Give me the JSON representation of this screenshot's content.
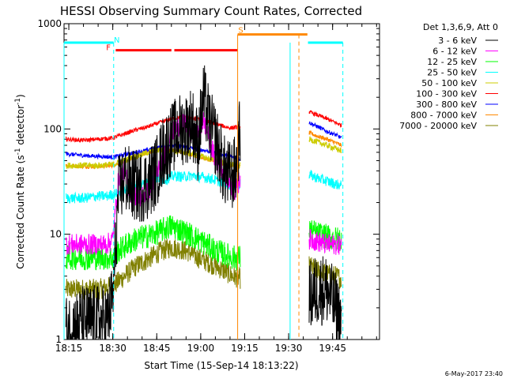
{
  "chart_data": {
    "type": "line",
    "title": "HESSI Observing Summary Count Rates, Corrected",
    "xlabel": "Start Time (15-Sep-14 18:13:22)",
    "ylabel_main": "Corrected Count Rate (s",
    "ylabel_sup1": "-1",
    "ylabel_mid": " detector",
    "ylabel_sup2": "-1",
    "ylabel_end": ")",
    "yscale": "log",
    "ylim": [
      1,
      1000
    ],
    "xlim_minutes": [
      1093.37,
      1201.0
    ],
    "x_ticks": [
      {
        "label": "18:15",
        "minutes": 1095
      },
      {
        "label": "18:30",
        "minutes": 1110
      },
      {
        "label": "18:45",
        "minutes": 1125
      },
      {
        "label": "19:00",
        "minutes": 1140
      },
      {
        "label": "19:15",
        "minutes": 1155
      },
      {
        "label": "19:30",
        "minutes": 1170
      },
      {
        "label": "19:45",
        "minutes": 1185
      }
    ],
    "y_ticks": [
      {
        "label": "1",
        "value": 1
      },
      {
        "label": "10",
        "value": 10
      },
      {
        "label": "100",
        "value": 100
      },
      {
        "label": "1000",
        "value": 1000
      }
    ],
    "legend_title": "Det 1,3,6,9, Att 0",
    "legend_position": "right",
    "timestamp": "6-May-2017 23:40",
    "gap_minutes": [
      1153.5,
      1176.5
    ],
    "series": [
      {
        "name": "3 - 6 keV",
        "color": "#000000",
        "seg1": [
          [
            1094,
            1.2
          ],
          [
            1100,
            1.5
          ],
          [
            1105,
            1.5
          ],
          [
            1108,
            1.5
          ],
          [
            1110,
            2.5
          ],
          [
            1112,
            25
          ],
          [
            1114,
            35
          ],
          [
            1116,
            30
          ],
          [
            1119,
            28
          ],
          [
            1122,
            30
          ],
          [
            1125,
            40
          ],
          [
            1127,
            60
          ],
          [
            1130,
            80
          ],
          [
            1133,
            100
          ],
          [
            1135,
            100
          ],
          [
            1137,
            120
          ],
          [
            1139,
            70
          ],
          [
            1141,
            200
          ],
          [
            1143,
            110
          ],
          [
            1145,
            80
          ],
          [
            1148,
            40
          ],
          [
            1150,
            35
          ],
          [
            1152,
            40
          ],
          [
            1153.5,
            100
          ]
        ],
        "seg2": [
          [
            1177,
            2.5
          ],
          [
            1180,
            3
          ],
          [
            1183,
            3
          ],
          [
            1186,
            2
          ],
          [
            1188,
            1.5
          ]
        ]
      },
      {
        "name": "6 - 12 keV",
        "color": "#ff00ff",
        "seg1": [
          [
            1094,
            8
          ],
          [
            1100,
            8
          ],
          [
            1105,
            8
          ],
          [
            1108,
            8
          ],
          [
            1110,
            9
          ],
          [
            1112,
            35
          ],
          [
            1114,
            40
          ],
          [
            1116,
            25
          ],
          [
            1119,
            22
          ],
          [
            1122,
            25
          ],
          [
            1125,
            38
          ],
          [
            1128,
            60
          ],
          [
            1130,
            90
          ],
          [
            1133,
            110
          ],
          [
            1135,
            110
          ],
          [
            1137,
            90
          ],
          [
            1139,
            90
          ],
          [
            1141,
            120
          ],
          [
            1143,
            80
          ],
          [
            1145,
            50
          ],
          [
            1148,
            40
          ],
          [
            1150,
            30
          ],
          [
            1152,
            25
          ],
          [
            1153.5,
            35
          ]
        ],
        "seg2": [
          [
            1177,
            9
          ],
          [
            1180,
            8.5
          ],
          [
            1183,
            8
          ],
          [
            1186,
            8
          ],
          [
            1188,
            8
          ]
        ]
      },
      {
        "name": "12 - 25 keV",
        "color": "#00ff00",
        "seg1": [
          [
            1094,
            6
          ],
          [
            1100,
            6
          ],
          [
            1105,
            6
          ],
          [
            1108,
            6
          ],
          [
            1110,
            6
          ],
          [
            1112,
            7
          ],
          [
            1115,
            8
          ],
          [
            1118,
            9
          ],
          [
            1121,
            9.5
          ],
          [
            1124,
            10
          ],
          [
            1127,
            11
          ],
          [
            1130,
            12
          ],
          [
            1133,
            11
          ],
          [
            1136,
            10
          ],
          [
            1139,
            9
          ],
          [
            1142,
            8
          ],
          [
            1145,
            7
          ],
          [
            1148,
            6.5
          ],
          [
            1151,
            6
          ],
          [
            1153.5,
            6
          ]
        ],
        "seg2": [
          [
            1177,
            11
          ],
          [
            1180,
            10
          ],
          [
            1183,
            9.5
          ],
          [
            1186,
            9
          ],
          [
            1188,
            9
          ]
        ]
      },
      {
        "name": "25 - 50 keV",
        "color": "#00ffff",
        "seg1": [
          [
            1094,
            22
          ],
          [
            1100,
            22
          ],
          [
            1105,
            23
          ],
          [
            1108,
            23
          ],
          [
            1110,
            24
          ],
          [
            1113,
            25
          ],
          [
            1116,
            28
          ],
          [
            1119,
            30
          ],
          [
            1122,
            31
          ],
          [
            1125,
            34
          ],
          [
            1128,
            33
          ],
          [
            1131,
            36
          ],
          [
            1134,
            35
          ],
          [
            1137,
            36
          ],
          [
            1140,
            35
          ],
          [
            1143,
            34
          ],
          [
            1146,
            32
          ],
          [
            1149,
            30
          ],
          [
            1151,
            29
          ],
          [
            1153.5,
            30
          ]
        ],
        "seg2": [
          [
            1177,
            37
          ],
          [
            1180,
            34
          ],
          [
            1183,
            32
          ],
          [
            1186,
            30
          ],
          [
            1188,
            29
          ]
        ]
      },
      {
        "name": "50 - 100 keV",
        "color": "#cccc00",
        "seg1": [
          [
            1094,
            45
          ],
          [
            1100,
            45
          ],
          [
            1105,
            45
          ],
          [
            1110,
            46
          ],
          [
            1114,
            50
          ],
          [
            1118,
            55
          ],
          [
            1122,
            60
          ],
          [
            1126,
            63
          ],
          [
            1130,
            62
          ],
          [
            1134,
            60
          ],
          [
            1138,
            57
          ],
          [
            1142,
            53
          ],
          [
            1146,
            50
          ],
          [
            1150,
            46
          ],
          [
            1153.5,
            45
          ]
        ],
        "seg2": [
          [
            1177,
            80
          ],
          [
            1180,
            75
          ],
          [
            1183,
            70
          ],
          [
            1186,
            65
          ],
          [
            1188,
            62
          ]
        ]
      },
      {
        "name": "100 - 300 keV",
        "color": "#ff0000",
        "seg1": [
          [
            1094,
            80
          ],
          [
            1100,
            78
          ],
          [
            1105,
            80
          ],
          [
            1110,
            82
          ],
          [
            1114,
            90
          ],
          [
            1118,
            98
          ],
          [
            1122,
            105
          ],
          [
            1126,
            115
          ],
          [
            1130,
            125
          ],
          [
            1134,
            130
          ],
          [
            1138,
            125
          ],
          [
            1142,
            118
          ],
          [
            1146,
            110
          ],
          [
            1150,
            102
          ],
          [
            1153.5,
            105
          ]
        ],
        "seg2": [
          [
            1177,
            145
          ],
          [
            1180,
            135
          ],
          [
            1183,
            125
          ],
          [
            1186,
            115
          ],
          [
            1188,
            108
          ]
        ]
      },
      {
        "name": "300 - 800 keV",
        "color": "#0000ff",
        "seg1": [
          [
            1094,
            58
          ],
          [
            1100,
            56
          ],
          [
            1105,
            55
          ],
          [
            1110,
            54
          ],
          [
            1114,
            57
          ],
          [
            1118,
            60
          ],
          [
            1122,
            63
          ],
          [
            1126,
            67
          ],
          [
            1130,
            70
          ],
          [
            1134,
            68
          ],
          [
            1138,
            65
          ],
          [
            1142,
            62
          ],
          [
            1146,
            58
          ],
          [
            1150,
            55
          ],
          [
            1153.5,
            52
          ]
        ],
        "seg2": [
          [
            1177,
            115
          ],
          [
            1180,
            105
          ],
          [
            1183,
            95
          ],
          [
            1186,
            88
          ],
          [
            1188,
            82
          ]
        ]
      },
      {
        "name": "800 - 7000 keV",
        "color": "#ff8800",
        "seg1": [
          [
            1094,
            45
          ],
          [
            1100,
            44
          ],
          [
            1105,
            44
          ],
          [
            1110,
            45
          ],
          [
            1114,
            50
          ],
          [
            1118,
            55
          ],
          [
            1122,
            60
          ],
          [
            1126,
            64
          ],
          [
            1130,
            63
          ],
          [
            1134,
            60
          ],
          [
            1138,
            56
          ],
          [
            1142,
            52
          ],
          [
            1146,
            48
          ],
          [
            1150,
            46
          ],
          [
            1153.5,
            44
          ]
        ],
        "seg2": [
          [
            1177,
            92
          ],
          [
            1180,
            85
          ],
          [
            1183,
            80
          ],
          [
            1186,
            74
          ],
          [
            1188,
            70
          ]
        ]
      },
      {
        "name": "7000 - 20000 keV",
        "color": "#808000",
        "seg1": [
          [
            1094,
            3
          ],
          [
            1100,
            3
          ],
          [
            1105,
            3
          ],
          [
            1110,
            3.2
          ],
          [
            1114,
            4
          ],
          [
            1118,
            5
          ],
          [
            1122,
            5.8
          ],
          [
            1126,
            6.8
          ],
          [
            1130,
            7.5
          ],
          [
            1133,
            7.2
          ],
          [
            1136,
            6.8
          ],
          [
            1139,
            6
          ],
          [
            1142,
            5.5
          ],
          [
            1145,
            5
          ],
          [
            1148,
            4.5
          ],
          [
            1151,
            4
          ],
          [
            1153.5,
            3.8
          ]
        ],
        "seg2": [
          [
            1177,
            5
          ],
          [
            1180,
            4.5
          ],
          [
            1183,
            4.2
          ],
          [
            1186,
            4
          ],
          [
            1188,
            3.8
          ]
        ]
      }
    ],
    "annotations": [
      {
        "label": "N",
        "color": "#00ffff",
        "minutes": 1110.3,
        "value": 660
      },
      {
        "label": "F",
        "color": "#ff0000",
        "minutes": 1109.6,
        "value": 560
      },
      {
        "label": "S",
        "color": "#ff8800",
        "minutes": 1152.6,
        "value": 790
      }
    ]
  }
}
